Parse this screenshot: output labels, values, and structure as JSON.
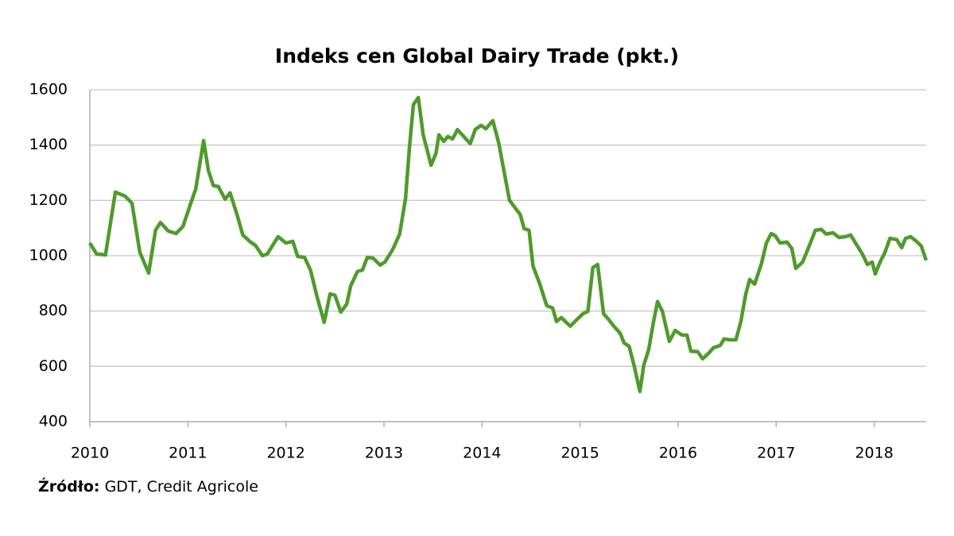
{
  "chart_data": {
    "type": "line",
    "title": "Indeks cen Global Dairy Trade (pkt.)",
    "source_label": "Źródło:",
    "source_text": "GDT, Credit Agricole",
    "xlim": [
      2010,
      2018.53
    ],
    "xticks": [
      2010,
      2011,
      2012,
      2013,
      2014,
      2015,
      2016,
      2017,
      2018
    ],
    "ylim": [
      400,
      1600
    ],
    "yticks": [
      400,
      600,
      800,
      1000,
      1200,
      1400,
      1600
    ],
    "grid": true,
    "series": [
      {
        "color": "#4f9a2c",
        "x": [
          2010.0,
          2010.07,
          2010.16,
          2010.26,
          2010.36,
          2010.43,
          2010.51,
          2010.6,
          2010.67,
          2010.72,
          2010.8,
          2010.88,
          2010.95,
          2011.03,
          2011.08,
          2011.16,
          2011.21,
          2011.26,
          2011.31,
          2011.38,
          2011.43,
          2011.5,
          2011.56,
          2011.64,
          2011.69,
          2011.76,
          2011.81,
          2011.92,
          2012.0,
          2012.07,
          2012.12,
          2012.19,
          2012.25,
          2012.32,
          2012.39,
          2012.45,
          2012.5,
          2012.56,
          2012.62,
          2012.66,
          2012.73,
          2012.78,
          2012.83,
          2012.89,
          2012.96,
          2013.01,
          2013.09,
          2013.16,
          2013.22,
          2013.26,
          2013.3,
          2013.35,
          2013.4,
          2013.44,
          2013.48,
          2013.53,
          2013.56,
          2013.61,
          2013.65,
          2013.7,
          2013.75,
          2013.82,
          2013.88,
          2013.93,
          2013.99,
          2014.04,
          2014.11,
          2014.17,
          2014.22,
          2014.28,
          2014.34,
          2014.39,
          2014.43,
          2014.48,
          2014.52,
          2014.59,
          2014.66,
          2014.72,
          2014.76,
          2014.81,
          2014.85,
          2014.9,
          2014.97,
          2015.03,
          2015.08,
          2015.13,
          2015.18,
          2015.24,
          2015.29,
          2015.34,
          2015.41,
          2015.45,
          2015.5,
          2015.55,
          2015.61,
          2015.65,
          2015.7,
          2015.75,
          2015.79,
          2015.84,
          2015.91,
          2015.97,
          2016.04,
          2016.09,
          2016.13,
          2016.2,
          2016.25,
          2016.31,
          2016.36,
          2016.43,
          2016.47,
          2016.52,
          2016.59,
          2016.64,
          2016.69,
          2016.73,
          2016.78,
          2016.85,
          2016.9,
          2016.95,
          2016.99,
          2017.04,
          2017.11,
          2017.16,
          2017.2,
          2017.27,
          2017.33,
          2017.4,
          2017.46,
          2017.51,
          2017.58,
          2017.64,
          2017.71,
          2017.76,
          2017.82,
          2017.88,
          2017.93,
          2017.98,
          2018.01,
          2018.06,
          2018.11,
          2018.16,
          2018.23,
          2018.28,
          2018.32,
          2018.37,
          2018.42,
          2018.48,
          2018.53
        ],
        "values": [
          1046,
          1006,
          1003,
          1230,
          1215,
          1190,
          1012,
          937,
          1092,
          1120,
          1089,
          1080,
          1106,
          1190,
          1241,
          1416,
          1307,
          1253,
          1250,
          1204,
          1227,
          1150,
          1075,
          1049,
          1037,
          1000,
          1006,
          1069,
          1046,
          1052,
          997,
          994,
          948,
          848,
          759,
          862,
          857,
          796,
          825,
          891,
          943,
          948,
          994,
          991,
          966,
          977,
          1023,
          1078,
          1207,
          1394,
          1546,
          1572,
          1437,
          1382,
          1327,
          1370,
          1437,
          1413,
          1431,
          1422,
          1456,
          1428,
          1405,
          1456,
          1471,
          1459,
          1488,
          1408,
          1313,
          1201,
          1172,
          1149,
          1098,
          1092,
          963,
          897,
          819,
          811,
          762,
          776,
          762,
          745,
          770,
          790,
          799,
          957,
          968,
          790,
          770,
          747,
          719,
          684,
          673,
          604,
          509,
          604,
          661,
          762,
          834,
          799,
          690,
          730,
          713,
          713,
          655,
          653,
          627,
          647,
          667,
          676,
          699,
          696,
          696,
          762,
          862,
          914,
          897,
          971,
          1046,
          1080,
          1072,
          1046,
          1049,
          1026,
          954,
          977,
          1029,
          1092,
          1095,
          1078,
          1083,
          1066,
          1069,
          1075,
          1040,
          1006,
          968,
          977,
          934,
          977,
          1012,
          1063,
          1058,
          1029,
          1063,
          1069,
          1055,
          1035,
          983
        ]
      }
    ]
  }
}
